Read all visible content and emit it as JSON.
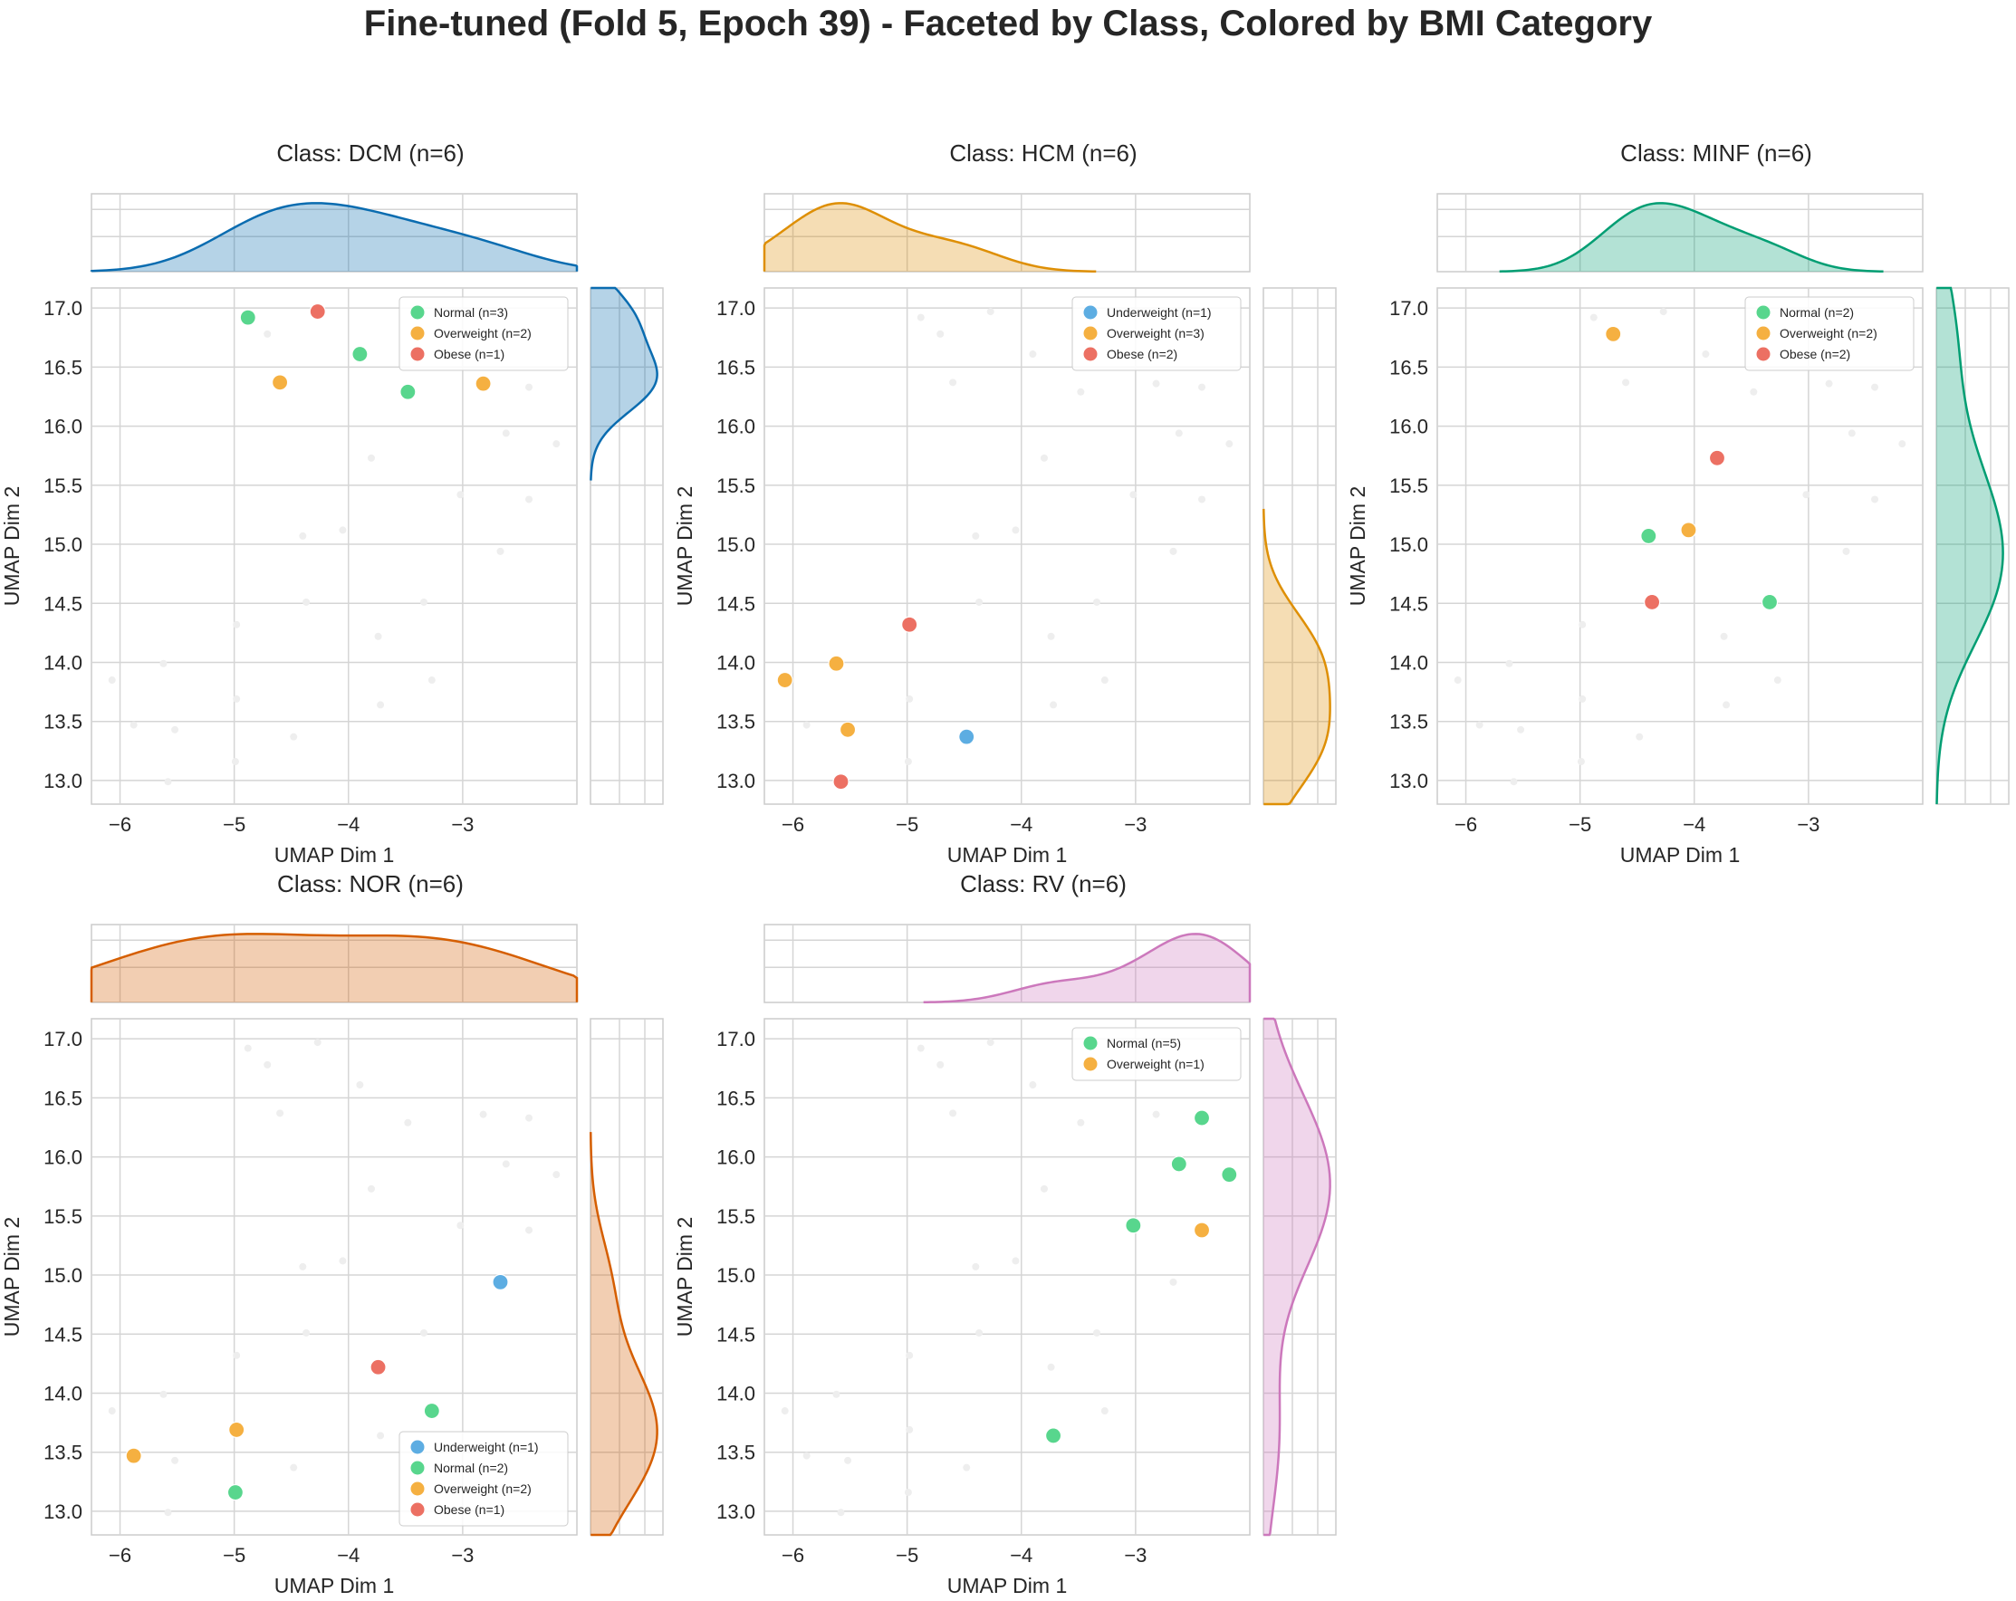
{
  "figure": {
    "title": "Fine-tuned (Fold 5, Epoch 39) - Faceted by Class, Colored by BMI Category"
  },
  "colors": {
    "Underweight": "#5dade2",
    "Normal": "#58d68d",
    "Overweight": "#f5b041",
    "Obese": "#ec7063",
    "background_point": "#eeeeee",
    "grid": "#d5d5d5",
    "frame": "#cccccc"
  },
  "chart_data": [
    {
      "type": "scatter",
      "title": "Class: DCM (n=6)",
      "xlabel": "UMAP Dim 1",
      "ylabel": "UMAP Dim 2",
      "kde_color": "#0a6cb0",
      "legend": [
        "Normal (n=3)",
        "Overweight (n=2)",
        "Obese (n=1)"
      ],
      "legend_position": "top-right",
      "points": [
        {
          "x": -4.88,
          "y": 16.92,
          "cat": "Normal"
        },
        {
          "x": -3.9,
          "y": 16.61,
          "cat": "Normal"
        },
        {
          "x": -3.48,
          "y": 16.29,
          "cat": "Normal"
        },
        {
          "x": -4.6,
          "y": 16.37,
          "cat": "Overweight"
        },
        {
          "x": -2.82,
          "y": 16.36,
          "cat": "Overweight"
        },
        {
          "x": -4.27,
          "y": 16.97,
          "cat": "Obese"
        }
      ]
    },
    {
      "type": "scatter",
      "title": "Class: HCM (n=6)",
      "xlabel": "UMAP Dim 1",
      "ylabel": "UMAP Dim 2",
      "kde_color": "#de8f05",
      "legend": [
        "Underweight (n=1)",
        "Overweight (n=3)",
        "Obese (n=2)"
      ],
      "legend_position": "top-right",
      "points": [
        {
          "x": -4.48,
          "y": 13.37,
          "cat": "Underweight"
        },
        {
          "x": -6.07,
          "y": 13.85,
          "cat": "Overweight"
        },
        {
          "x": -5.62,
          "y": 13.99,
          "cat": "Overweight"
        },
        {
          "x": -5.52,
          "y": 13.43,
          "cat": "Overweight"
        },
        {
          "x": -4.98,
          "y": 14.32,
          "cat": "Obese"
        },
        {
          "x": -5.58,
          "y": 12.99,
          "cat": "Obese"
        }
      ]
    },
    {
      "type": "scatter",
      "title": "Class: MINF (n=6)",
      "xlabel": "UMAP Dim 1",
      "ylabel": "UMAP Dim 2",
      "kde_color": "#029e73",
      "legend": [
        "Normal (n=2)",
        "Overweight (n=2)",
        "Obese (n=2)"
      ],
      "legend_position": "top-right",
      "points": [
        {
          "x": -4.4,
          "y": 15.07,
          "cat": "Normal"
        },
        {
          "x": -3.34,
          "y": 14.51,
          "cat": "Normal"
        },
        {
          "x": -4.71,
          "y": 16.78,
          "cat": "Overweight"
        },
        {
          "x": -4.05,
          "y": 15.12,
          "cat": "Overweight"
        },
        {
          "x": -3.8,
          "y": 15.73,
          "cat": "Obese"
        },
        {
          "x": -4.37,
          "y": 14.51,
          "cat": "Obese"
        }
      ]
    },
    {
      "type": "scatter",
      "title": "Class: NOR (n=6)",
      "xlabel": "UMAP Dim 1",
      "ylabel": "UMAP Dim 2",
      "kde_color": "#d55e00",
      "legend": [
        "Underweight (n=1)",
        "Normal (n=2)",
        "Overweight (n=2)",
        "Obese (n=1)"
      ],
      "legend_position": "bottom-right",
      "points": [
        {
          "x": -2.67,
          "y": 14.94,
          "cat": "Underweight"
        },
        {
          "x": -3.27,
          "y": 13.85,
          "cat": "Normal"
        },
        {
          "x": -4.99,
          "y": 13.16,
          "cat": "Normal"
        },
        {
          "x": -5.88,
          "y": 13.47,
          "cat": "Overweight"
        },
        {
          "x": -4.98,
          "y": 13.69,
          "cat": "Overweight"
        },
        {
          "x": -3.74,
          "y": 14.22,
          "cat": "Obese"
        }
      ]
    },
    {
      "type": "scatter",
      "title": "Class: RV (n=6)",
      "xlabel": "UMAP Dim 1",
      "ylabel": "UMAP Dim 2",
      "kde_color": "#cc78bc",
      "legend": [
        "Normal (n=5)",
        "Overweight (n=1)"
      ],
      "legend_position": "top-right",
      "points": [
        {
          "x": -2.42,
          "y": 16.33,
          "cat": "Normal"
        },
        {
          "x": -2.62,
          "y": 15.94,
          "cat": "Normal"
        },
        {
          "x": -2.18,
          "y": 15.85,
          "cat": "Normal"
        },
        {
          "x": -3.02,
          "y": 15.42,
          "cat": "Normal"
        },
        {
          "x": -3.72,
          "y": 13.64,
          "cat": "Normal"
        },
        {
          "x": -2.42,
          "y": 15.38,
          "cat": "Overweight"
        }
      ]
    }
  ],
  "axes": {
    "xlim": [
      -6.25,
      -2.0
    ],
    "ylim": [
      12.8,
      17.17
    ],
    "xticks": [
      -6,
      -5,
      -4,
      -3
    ],
    "yticks": [
      13.0,
      13.5,
      14.0,
      14.5,
      15.0,
      15.5,
      16.0,
      16.5,
      17.0
    ],
    "xtick_labels": [
      "−6",
      "−5",
      "−4",
      "−3"
    ],
    "ytick_labels": [
      "13.0",
      "13.5",
      "14.0",
      "14.5",
      "15.0",
      "15.5",
      "16.0",
      "16.5",
      "17.0"
    ]
  }
}
